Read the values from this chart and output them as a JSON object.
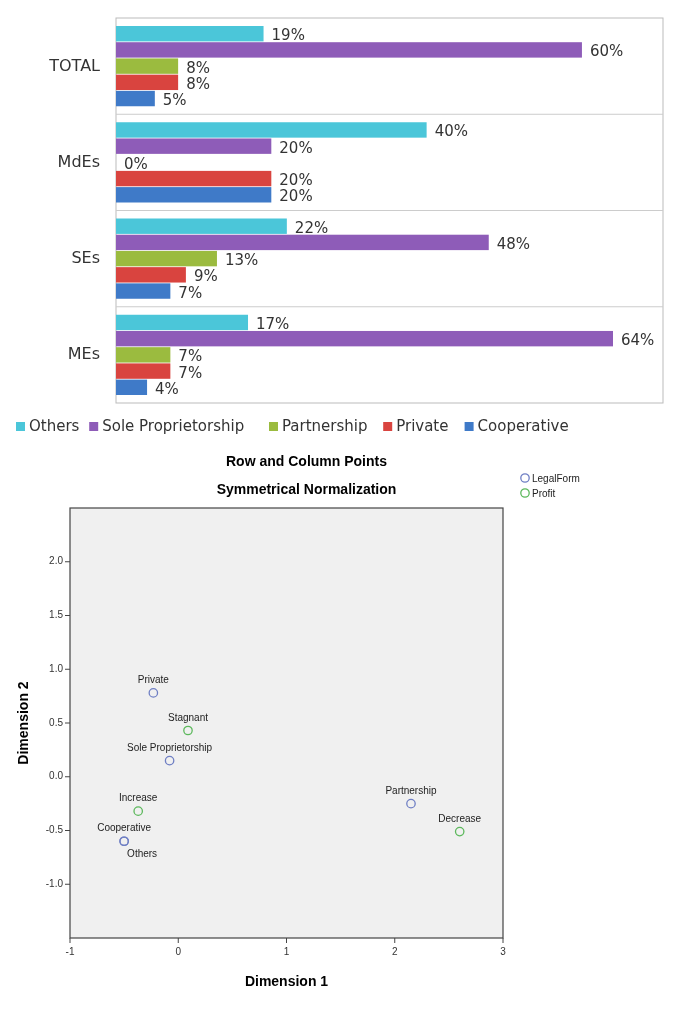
{
  "chart_data": [
    {
      "type": "bar",
      "orientation": "horizontal",
      "categories": [
        "TOTAL",
        "MdEs",
        "SEs",
        "MEs"
      ],
      "legend": "bottom",
      "series": [
        {
          "name": "Others",
          "color": "#4bc6d9",
          "values": [
            19,
            40,
            22,
            17
          ],
          "value_labels": [
            "19%",
            "40%",
            "22%",
            "17%"
          ]
        },
        {
          "name": "Sole Proprietorship",
          "color": "#8e5cb8",
          "values": [
            60,
            20,
            48,
            64
          ],
          "value_labels": [
            "60%",
            "20%",
            "48%",
            "64%"
          ]
        },
        {
          "name": "Partnership",
          "color": "#9bbb3f",
          "values": [
            8,
            0,
            13,
            7
          ],
          "value_labels": [
            "8%",
            "0%",
            "13%",
            "7%"
          ]
        },
        {
          "name": "Private",
          "color": "#d9443f",
          "values": [
            8,
            20,
            9,
            7
          ],
          "value_labels": [
            "8%",
            "20%",
            "9%",
            "7%"
          ]
        },
        {
          "name": "Cooperative",
          "color": "#3f7ac8",
          "values": [
            5,
            20,
            7,
            4
          ],
          "value_labels": [
            "5%",
            "20%",
            "7%",
            "4%"
          ]
        }
      ]
    },
    {
      "type": "scatter",
      "title": "Row and Column Points",
      "subtitle": "Symmetrical Normalization",
      "xlabel": "Dimension 1",
      "ylabel": "Dimension 2",
      "marker": "circle",
      "legend": "top right",
      "xlim": [
        -1,
        3
      ],
      "xticks": [
        -1,
        0,
        1,
        2,
        3
      ],
      "ylim": [
        -1.5,
        2.5
      ],
      "yticks": [
        {
          "value": -1,
          "label": "-1.0"
        },
        {
          "value": -0.5,
          "label": "-0.5"
        },
        {
          "value": 0,
          "label": "0.0"
        },
        {
          "value": 0.5,
          "label": "0.5"
        },
        {
          "value": 1,
          "label": "1.0"
        },
        {
          "value": 1.5,
          "label": "1.5"
        },
        {
          "value": 2,
          "label": "2.0"
        }
      ],
      "series": [
        {
          "name": "LegalForm",
          "color": "#6f7fc4",
          "x": [
            -0.23,
            -0.08,
            -0.5,
            -0.5,
            2.15
          ],
          "values": [
            0.78,
            0.15,
            -0.6,
            -0.6,
            -0.25
          ]
        },
        {
          "name": "Profit",
          "color": "#5cb85c",
          "x": [
            0.09,
            -0.37,
            2.6
          ],
          "values": [
            0.43,
            -0.32,
            -0.51
          ]
        }
      ],
      "annotations": [
        {
          "text": "Private",
          "x": -0.23,
          "y": 0.78
        },
        {
          "text": "Sole Proprietorship",
          "x": -0.08,
          "y": 0.15
        },
        {
          "text": "Cooperative",
          "x": -0.5,
          "y": -0.6
        },
        {
          "text": "Others",
          "x": -0.5,
          "y": -0.6
        },
        {
          "text": "Partnership",
          "x": 2.15,
          "y": -0.25
        },
        {
          "text": "Stagnant",
          "x": 0.09,
          "y": 0.43
        },
        {
          "text": "Increase",
          "x": -0.37,
          "y": -0.32
        },
        {
          "text": "Decrease",
          "x": 2.6,
          "y": -0.51
        }
      ]
    }
  ]
}
